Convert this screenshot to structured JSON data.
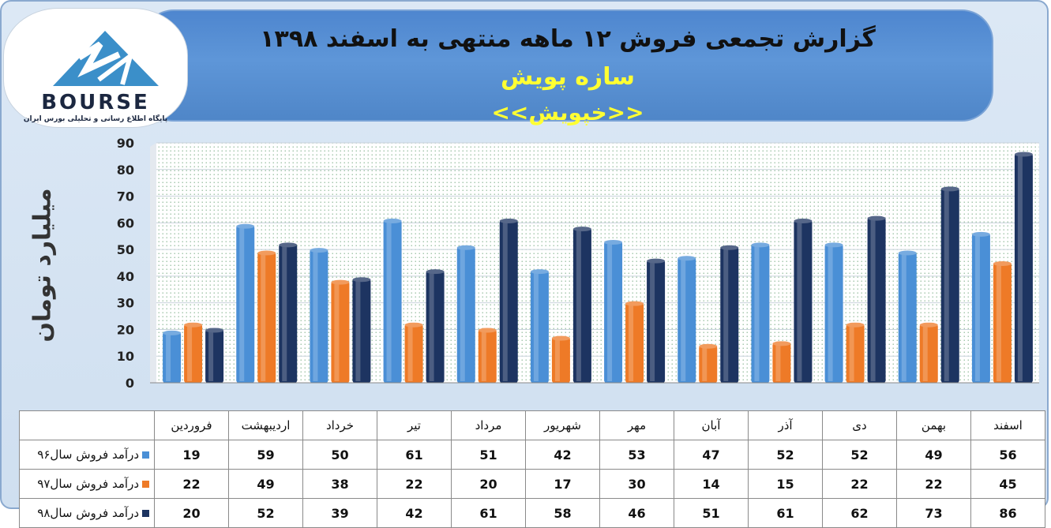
{
  "title": {
    "line1": "گزارش تجمعی فروش  ۱۲ ماهه منتهی به اسفند ۱۳۹۸",
    "company": "سازه پویش",
    "symbol": "<<خپویش>>"
  },
  "logo": {
    "word": "BOURSE",
    "tagline": "پایگاه اطلاع رسانی و تحلیلی بورس ایران"
  },
  "chart_data": {
    "type": "bar",
    "ylabel": "میلیارد تومان",
    "ylim": [
      0,
      90
    ],
    "yticks": [
      0,
      10,
      20,
      30,
      40,
      50,
      60,
      70,
      80,
      90
    ],
    "categories": [
      "فروردین",
      "اردیبهشت",
      "خرداد",
      "تیر",
      "مرداد",
      "شهریور",
      "مهر",
      "آبان",
      "آذر",
      "دی",
      "بهمن",
      "اسفند"
    ],
    "series": [
      {
        "name": "درآمد فروش سال۹۶",
        "color": "#4a8fd6",
        "values": [
          19,
          59,
          50,
          61,
          51,
          42,
          53,
          47,
          52,
          52,
          49,
          56
        ]
      },
      {
        "name": "درآمد فروش سال۹۷",
        "color": "#ee7a27",
        "values": [
          22,
          49,
          38,
          22,
          20,
          17,
          30,
          14,
          15,
          22,
          22,
          45
        ]
      },
      {
        "name": "درآمد فروش سال۹۸",
        "color": "#1d3461",
        "values": [
          20,
          52,
          39,
          42,
          61,
          58,
          46,
          51,
          61,
          62,
          73,
          86
        ]
      }
    ],
    "grid": true,
    "legend": "data-table"
  }
}
